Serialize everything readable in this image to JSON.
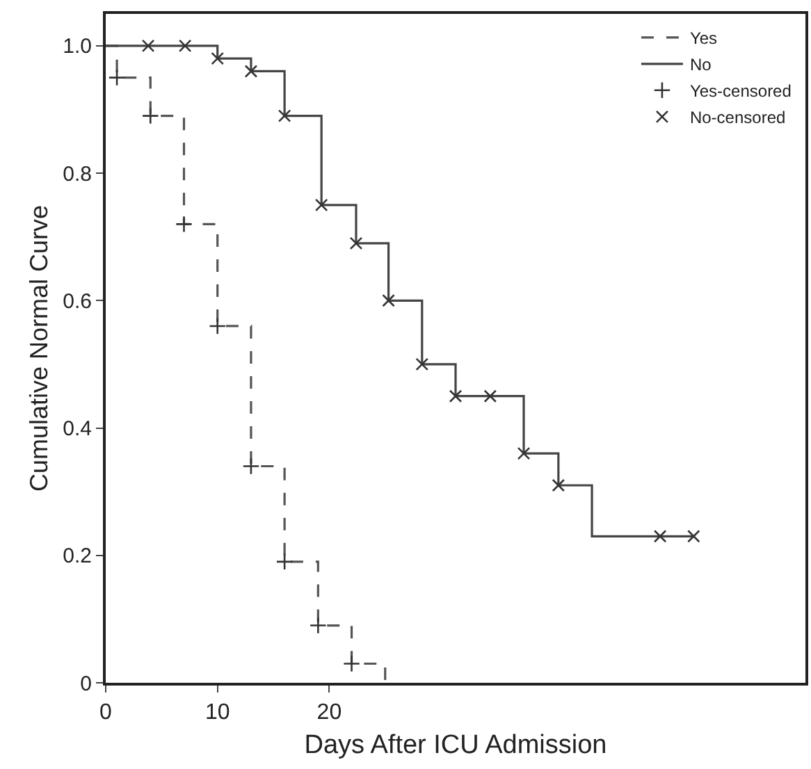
{
  "chart_data": {
    "type": "step",
    "xlabel": "Days After ICU Admission",
    "ylabel": "Cumulative Normal Curve",
    "xlim": [
      0,
      62.6
    ],
    "xticks": [
      0,
      10,
      20
    ],
    "ylim": [
      0,
      1.05
    ],
    "yticks": [
      0,
      0.2,
      0.4,
      0.6,
      0.8,
      {
        "value": 1,
        "label": "1.0"
      }
    ],
    "grid": false,
    "legend": "top right",
    "series": [
      {
        "name": "Yes",
        "line_style": "dashed",
        "color": "#555555",
        "x": [
          0,
          1,
          4,
          7,
          10,
          13,
          16,
          19,
          22,
          25
        ],
        "values": [
          1,
          0.95,
          0.89,
          0.72,
          0.56,
          0.34,
          0.19,
          0.09,
          0.03,
          0
        ]
      },
      {
        "name": "No",
        "line_style": "solid",
        "color": "#444444",
        "x": [
          0,
          10,
          13,
          16,
          19.3,
          22.4,
          25.3,
          28.3,
          31.3,
          37.4,
          40.5,
          43.5,
          52.6
        ],
        "values": [
          1,
          0.98,
          0.96,
          0.89,
          0.75,
          0.69,
          0.6,
          0.5,
          0.45,
          0.36,
          0.31,
          0.23,
          0.23
        ]
      },
      {
        "name": "Yes-censored",
        "type": "scatter",
        "marker": "cross",
        "color": "#333333",
        "x": [
          1,
          4,
          7,
          10,
          13,
          16,
          19,
          22
        ],
        "values": [
          0.95,
          0.89,
          0.72,
          0.56,
          0.34,
          0.19,
          0.09,
          0.03
        ]
      },
      {
        "name": "No-censored",
        "type": "scatter",
        "marker": "x",
        "color": "#333333",
        "x": [
          3.8,
          7.1,
          10,
          13,
          16,
          19.3,
          22.4,
          25.3,
          28.3,
          31.3,
          34.4,
          37.4,
          40.5,
          49.6,
          52.6
        ],
        "values": [
          1,
          1,
          0.98,
          0.96,
          0.89,
          0.75,
          0.69,
          0.6,
          0.5,
          0.45,
          0.45,
          0.36,
          0.31,
          0.23,
          0.23
        ]
      }
    ]
  }
}
